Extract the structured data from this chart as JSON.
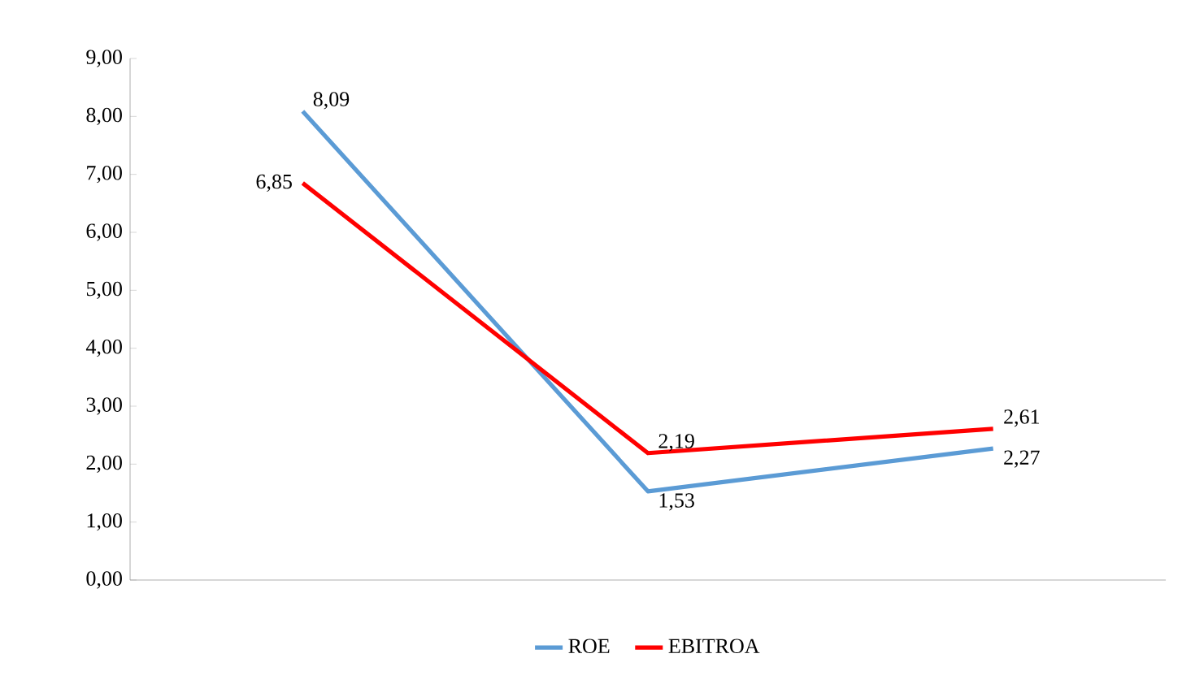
{
  "chart_data": {
    "type": "line",
    "categories": [
      null,
      null,
      null
    ],
    "series": [
      {
        "name": "ROE",
        "color": "#5b9bd5",
        "values": [
          8.09,
          1.53,
          2.27
        ],
        "value_labels": [
          "8,09",
          "1,53",
          "2,27"
        ]
      },
      {
        "name": "EBITROA",
        "color": "#ff0000",
        "values": [
          6.85,
          2.19,
          2.61
        ],
        "value_labels": [
          "6,85",
          "2,19",
          "2,61"
        ]
      }
    ],
    "ylim": [
      0,
      9
    ],
    "yticks": [
      {
        "value": 0,
        "label": "0,00"
      },
      {
        "value": 1,
        "label": "1,00"
      },
      {
        "value": 2,
        "label": "2,00"
      },
      {
        "value": 3,
        "label": "3,00"
      },
      {
        "value": 4,
        "label": "4,00"
      },
      {
        "value": 5,
        "label": "5,00"
      },
      {
        "value": 6,
        "label": "6,00"
      },
      {
        "value": 7,
        "label": "7,00"
      },
      {
        "value": 8,
        "label": "8,00"
      },
      {
        "value": 9,
        "label": "9,00"
      }
    ],
    "tick_labels": "y",
    "grid": false,
    "legend": "bottom",
    "marker": "none",
    "line_style": "solid"
  }
}
